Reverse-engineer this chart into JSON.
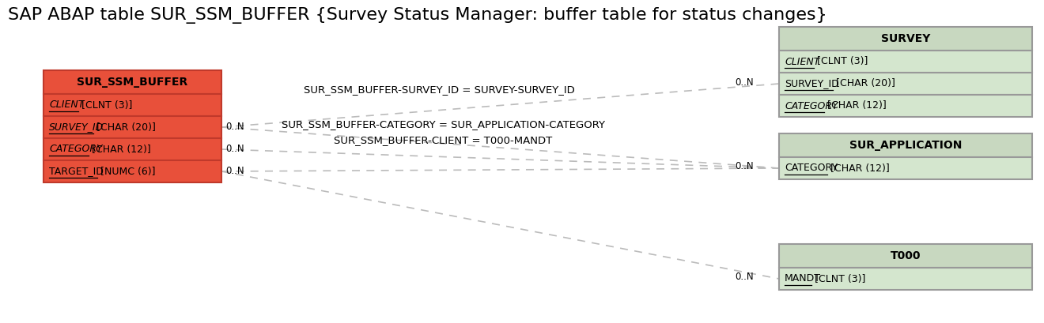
{
  "title": "SAP ABAP table SUR_SSM_BUFFER {Survey Status Manager: buffer table for status changes}",
  "bg_color": "#ffffff",
  "main_table": {
    "name": "SUR_SSM_BUFFER",
    "header_color": "#e8503a",
    "row_color": "#e8503a",
    "border_color": "#c0392b",
    "fields": [
      {
        "key": "CLIENT",
        "type": " [CLNT (3)]",
        "italic": true,
        "underline": true
      },
      {
        "key": "SURVEY_ID",
        "type": " [CHAR (20)]",
        "italic": true,
        "underline": true
      },
      {
        "key": "CATEGORY",
        "type": " [CHAR (12)]",
        "italic": true,
        "underline": true
      },
      {
        "key": "TARGET_ID",
        "type": " [NUMC (6)]",
        "italic": false,
        "underline": true
      }
    ]
  },
  "survey_table": {
    "name": "SURVEY",
    "header_color": "#c8d8c0",
    "row_color": "#d4e6ce",
    "border_color": "#999999",
    "fields": [
      {
        "key": "CLIENT",
        "type": " [CLNT (3)]",
        "italic": true,
        "underline": true
      },
      {
        "key": "SURVEY_ID",
        "type": " [CHAR (20)]",
        "italic": false,
        "underline": true
      },
      {
        "key": "CATEGORY",
        "type": " [CHAR (12)]",
        "italic": true,
        "underline": true
      }
    ]
  },
  "sur_app_table": {
    "name": "SUR_APPLICATION",
    "header_color": "#c8d8c0",
    "row_color": "#d4e6ce",
    "border_color": "#999999",
    "fields": [
      {
        "key": "CATEGORY",
        "type": " [CHAR (12)]",
        "italic": false,
        "underline": true
      }
    ]
  },
  "t000_table": {
    "name": "T000",
    "header_color": "#c8d8c0",
    "row_color": "#d4e6ce",
    "border_color": "#999999",
    "fields": [
      {
        "key": "MANDT",
        "type": " [CLNT (3)]",
        "italic": false,
        "underline": true
      }
    ]
  },
  "dash_color": "#aaaaaa",
  "rel1_label": "SUR_SSM_BUFFER-SURVEY_ID = SURVEY-SURVEY_ID",
  "rel2_label1": "SUR_SSM_BUFFER-CATEGORY = SUR_APPLICATION-CATEGORY",
  "rel2_label2": "SUR_SSM_BUFFER-CLIENT = T000-MANDT"
}
